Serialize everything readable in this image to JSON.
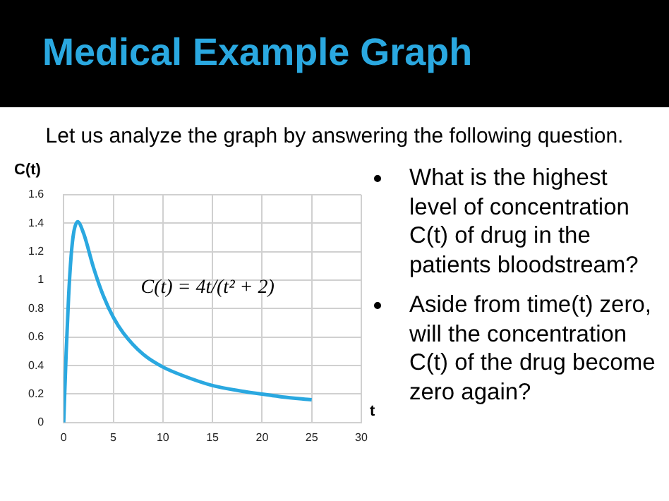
{
  "chart_data": {
    "type": "line",
    "title": "Medical Example Graph",
    "subtitle": "Let us analyze the graph by answering the following question.",
    "xlabel": "t",
    "ylabel": "C(t)",
    "x": [
      0,
      0.25,
      0.5,
      0.75,
      1,
      1.41,
      2,
      3,
      4,
      5,
      6,
      8,
      10,
      12,
      15,
      18,
      20,
      22,
      25
    ],
    "series": [
      {
        "color": "#2aa8e0",
        "values": [
          0,
          0.49,
          0.89,
          1.17,
          1.33,
          1.41,
          1.33,
          1.09,
          0.89,
          0.74,
          0.63,
          0.48,
          0.39,
          0.33,
          0.26,
          0.22,
          0.2,
          0.18,
          0.16
        ]
      }
    ],
    "xlim": [
      0,
      30
    ],
    "xticks": [
      0,
      5,
      10,
      15,
      20,
      25,
      30
    ],
    "ylim": [
      0,
      1.6
    ],
    "yticks": [
      0,
      0.2,
      0.4,
      0.6,
      0.8,
      1,
      1.2,
      1.4,
      1.6
    ],
    "grid": true,
    "legend": false,
    "marker": "none",
    "line_style": "solid",
    "annotations": [
      "C(t) = 4t/(t² + 2)",
      "What is the highest level of concentration C(t) of drug in the patients bloodstream?",
      "Aside from time(t) zero, will the concentration C(t) of the drug become zero again?"
    ]
  }
}
